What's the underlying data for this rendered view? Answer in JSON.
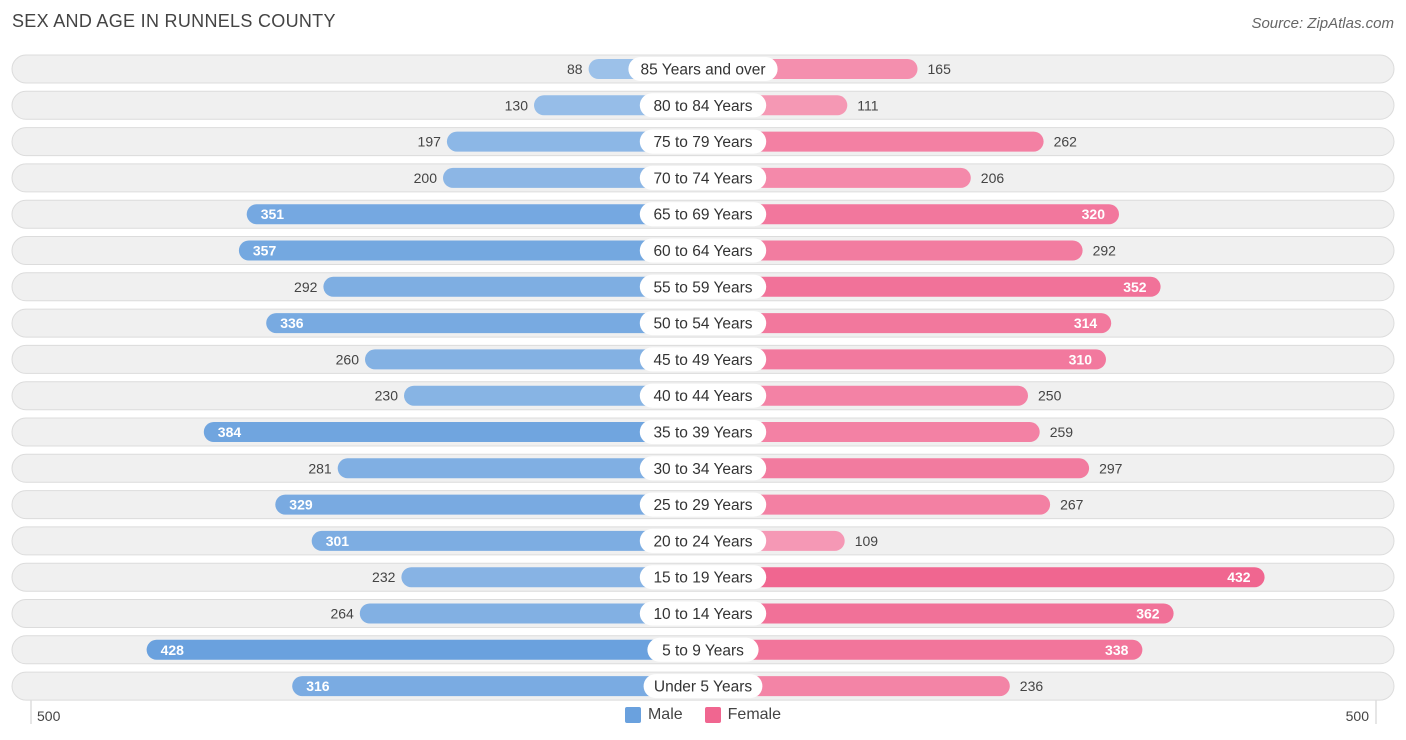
{
  "header": {
    "title": "SEX AND AGE IN RUNNELS COUNTY",
    "source": "Source: ZipAtlas.com"
  },
  "colors": {
    "male": "#6aa1de",
    "male_light": "#a9c9ec",
    "female": "#f06690",
    "female_light": "#f7a9c1",
    "row_bg": "#f0f0f0",
    "row_border": "#dcdcdc"
  },
  "chart_data": {
    "type": "bar",
    "orientation": "horizontal-diverging",
    "categories": [
      "85 Years and over",
      "80 to 84 Years",
      "75 to 79 Years",
      "70 to 74 Years",
      "65 to 69 Years",
      "60 to 64 Years",
      "55 to 59 Years",
      "50 to 54 Years",
      "45 to 49 Years",
      "40 to 44 Years",
      "35 to 39 Years",
      "30 to 34 Years",
      "25 to 29 Years",
      "20 to 24 Years",
      "15 to 19 Years",
      "10 to 14 Years",
      "5 to 9 Years",
      "Under 5 Years"
    ],
    "series": [
      {
        "name": "Male",
        "values": [
          88,
          130,
          197,
          200,
          351,
          357,
          292,
          336,
          260,
          230,
          384,
          281,
          329,
          301,
          232,
          264,
          428,
          316
        ]
      },
      {
        "name": "Female",
        "values": [
          165,
          111,
          262,
          206,
          320,
          292,
          352,
          314,
          310,
          250,
          259,
          297,
          267,
          109,
          432,
          362,
          338,
          236
        ]
      }
    ],
    "xlim": [
      -500,
      500
    ],
    "axis_labels": {
      "left": "500",
      "right": "500"
    },
    "legend_position": "bottom-center",
    "grid": false
  },
  "legend": {
    "male": "Male",
    "female": "Female"
  }
}
